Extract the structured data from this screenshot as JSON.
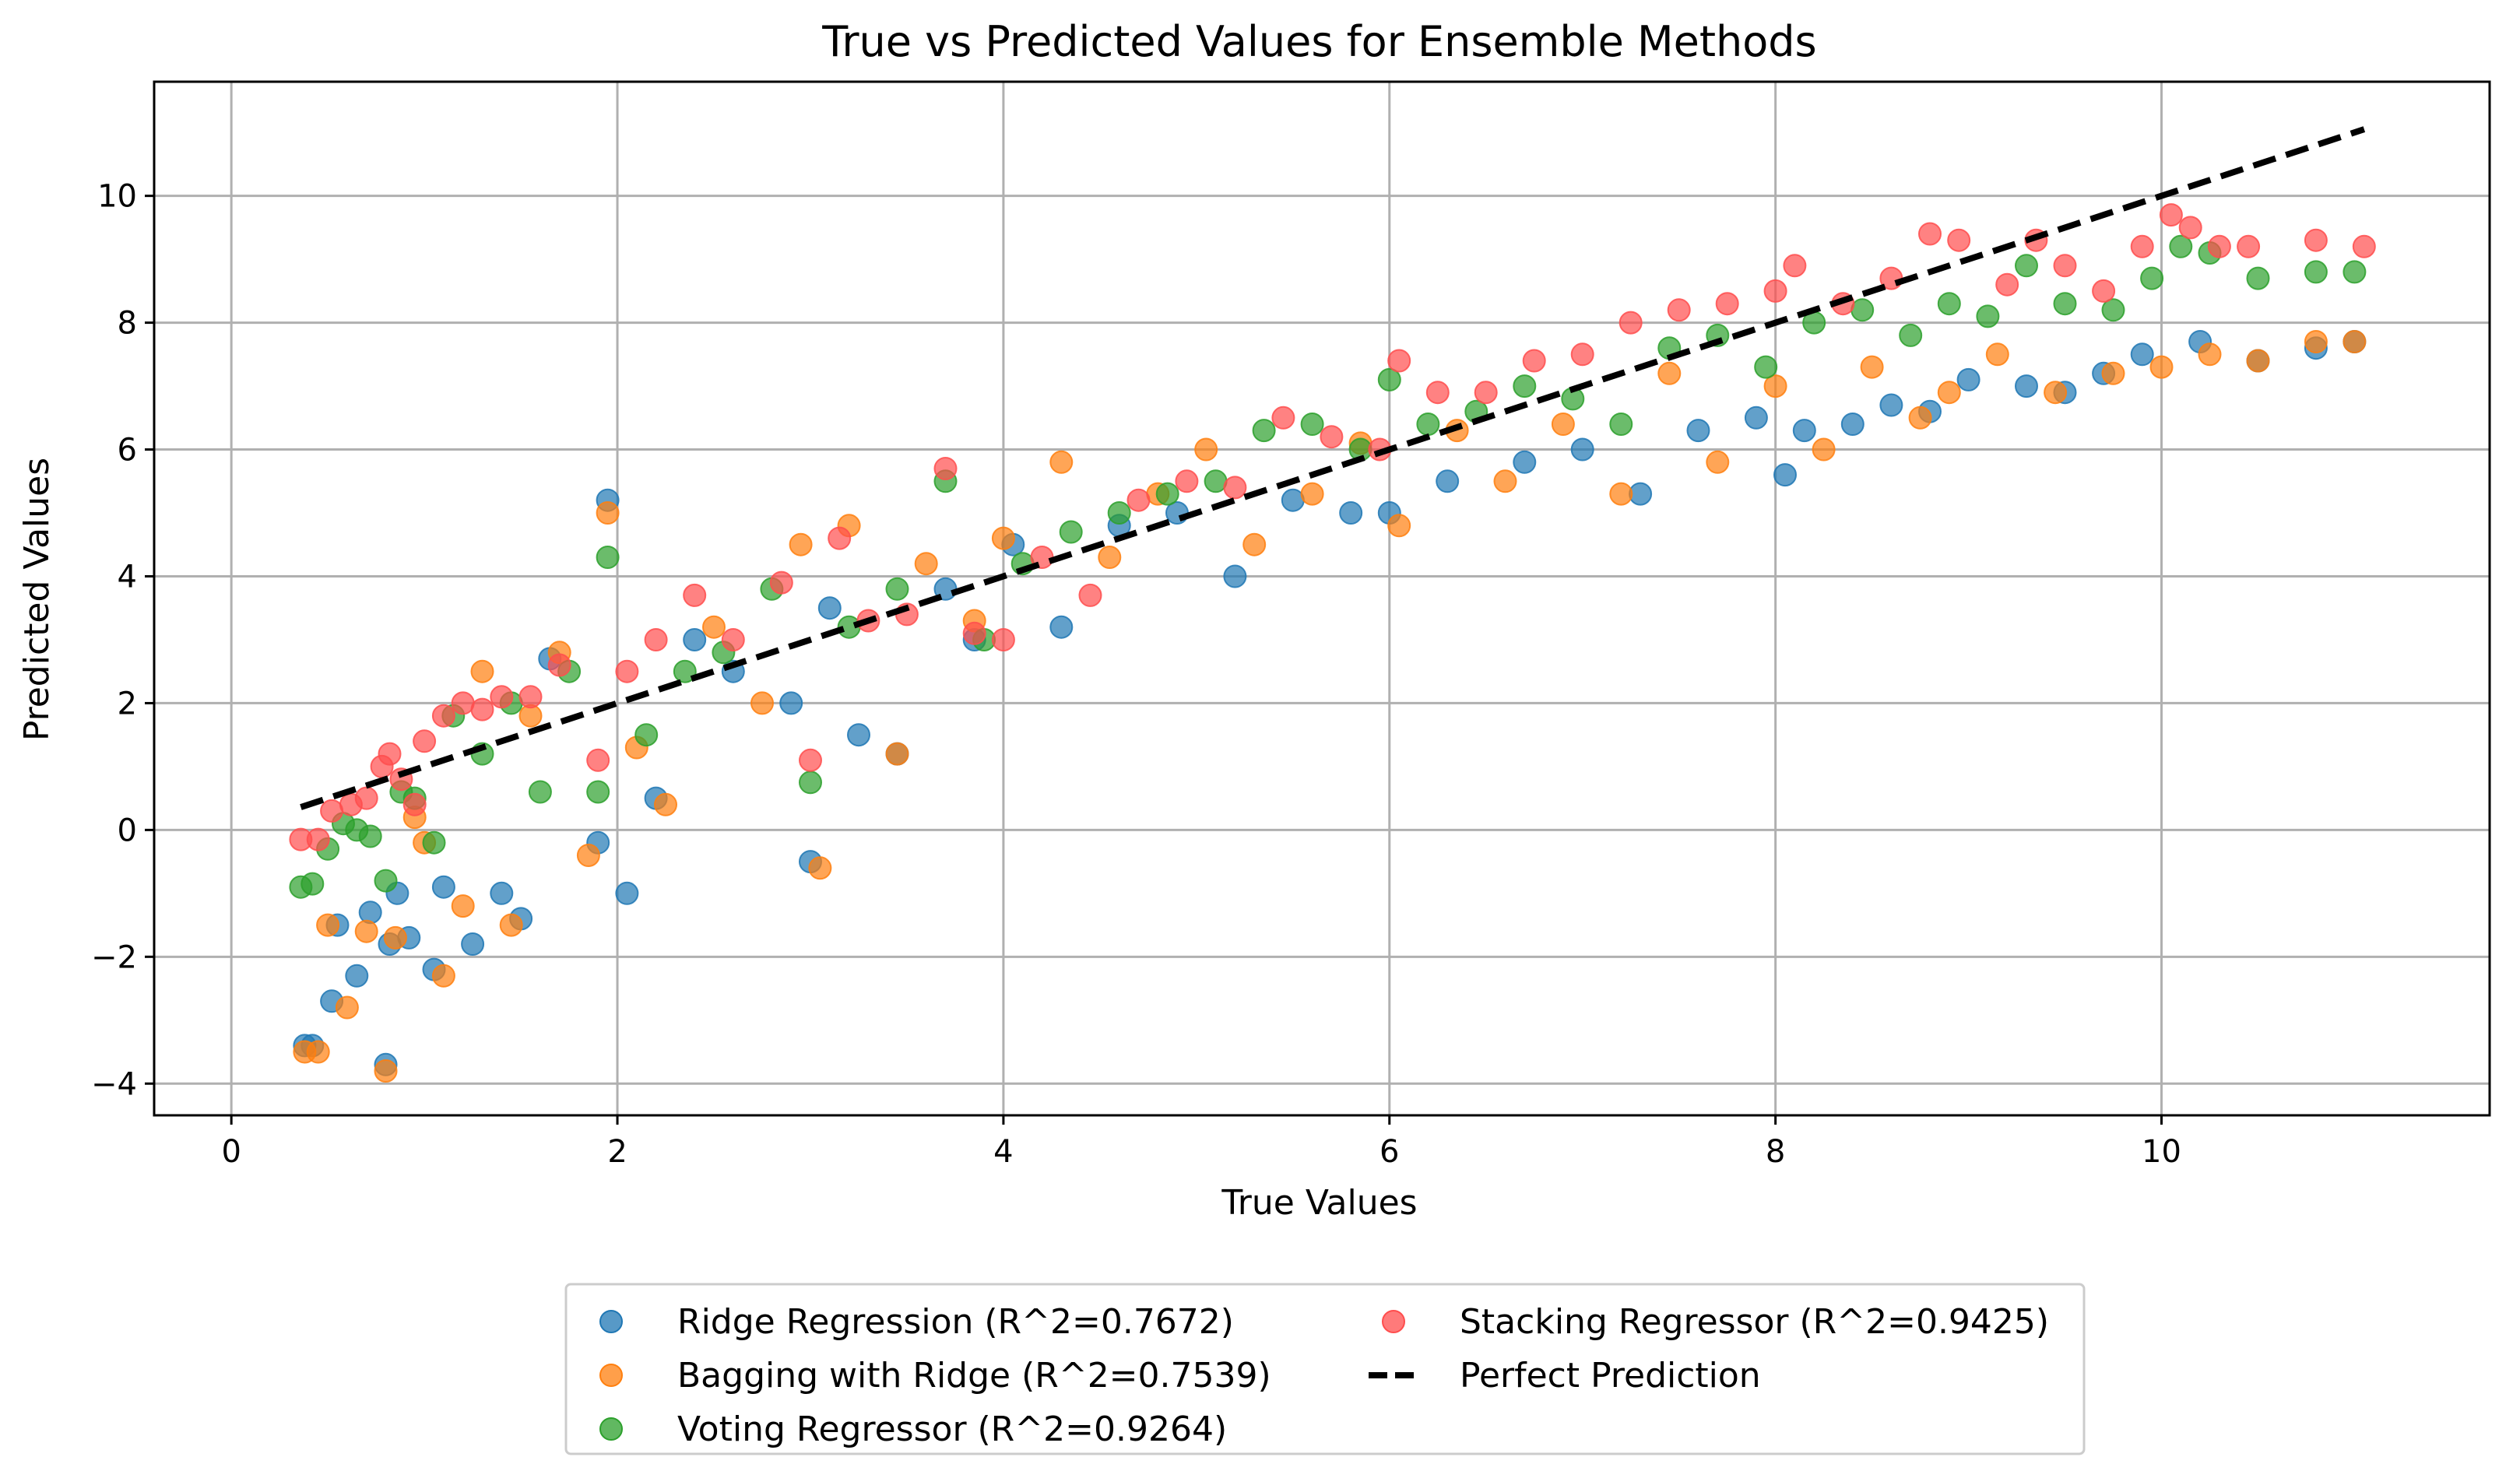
{
  "chart_data": {
    "type": "scatter",
    "title": "True vs Predicted Values for Ensemble Methods",
    "xlabel": "True Values",
    "ylabel": "Predicted Values",
    "xlim": [
      -0.4,
      11.7
    ],
    "ylim": [
      -4.5,
      11.8
    ],
    "x_ticks": [
      0,
      2,
      4,
      6,
      8,
      10
    ],
    "x_tick_labels": [
      "0",
      "2",
      "4",
      "6",
      "8",
      "10"
    ],
    "y_ticks": [
      -4,
      -2,
      0,
      2,
      4,
      6,
      8,
      10
    ],
    "y_tick_labels": [
      "−4",
      "−2",
      "0",
      "2",
      "4",
      "6",
      "8",
      "10"
    ],
    "grid": true,
    "legend_position": "lower-center-outside",
    "series": [
      {
        "name": "Ridge Regression (R^2=0.7672)",
        "color": "#1f77b4",
        "x": [
          0.38,
          0.42,
          0.52,
          0.55,
          0.65,
          0.72,
          0.8,
          0.82,
          0.86,
          0.92,
          1.05,
          1.1,
          1.25,
          1.4,
          1.5,
          1.65,
          1.9,
          1.95,
          2.05,
          2.2,
          2.4,
          2.6,
          2.9,
          3.0,
          3.1,
          3.25,
          3.45,
          3.7,
          3.85,
          4.05,
          4.3,
          4.6,
          4.9,
          5.2,
          5.5,
          5.8,
          6.0,
          6.3,
          6.7,
          7.0,
          7.3,
          7.6,
          7.9,
          8.05,
          8.15,
          8.4,
          8.6,
          8.8,
          9.0,
          9.3,
          9.5,
          9.7,
          9.9,
          10.2,
          10.5,
          10.8,
          11.0
        ],
        "y": [
          -3.4,
          -3.4,
          -2.7,
          -1.5,
          -2.3,
          -1.3,
          -3.7,
          -1.8,
          -1.0,
          -1.7,
          -2.2,
          -0.9,
          -1.8,
          -1.0,
          -1.4,
          2.7,
          -0.2,
          5.2,
          -1.0,
          0.5,
          3.0,
          2.5,
          2.0,
          -0.5,
          3.5,
          1.5,
          1.2,
          3.8,
          3.0,
          4.5,
          3.2,
          4.8,
          5.0,
          4.0,
          5.2,
          5.0,
          5.0,
          5.5,
          5.8,
          6.0,
          5.3,
          6.3,
          6.5,
          5.6,
          6.3,
          6.4,
          6.7,
          6.6,
          7.1,
          7.0,
          6.9,
          7.2,
          7.5,
          7.7,
          7.4,
          7.6,
          7.7
        ]
      },
      {
        "name": "Bagging with Ridge (R^2=0.7539)",
        "color": "#ff7f0e",
        "x": [
          0.38,
          0.45,
          0.5,
          0.6,
          0.7,
          0.8,
          0.85,
          0.95,
          1.0,
          1.1,
          1.2,
          1.3,
          1.45,
          1.55,
          1.7,
          1.85,
          1.95,
          2.1,
          2.25,
          2.5,
          2.75,
          2.95,
          3.05,
          3.2,
          3.45,
          3.6,
          3.85,
          4.0,
          4.3,
          4.55,
          4.8,
          5.05,
          5.3,
          5.6,
          5.85,
          6.05,
          6.35,
          6.6,
          6.9,
          7.2,
          7.45,
          7.7,
          8.0,
          8.25,
          8.5,
          8.75,
          8.9,
          9.15,
          9.45,
          9.75,
          10.0,
          10.25,
          10.5,
          10.8,
          11.0
        ],
        "y": [
          -3.5,
          -3.5,
          -1.5,
          -2.8,
          -1.6,
          -3.8,
          -1.7,
          0.2,
          -0.2,
          -2.3,
          -1.2,
          2.5,
          -1.5,
          1.8,
          2.8,
          -0.4,
          5.0,
          1.3,
          0.4,
          3.2,
          2.0,
          4.5,
          -0.6,
          4.8,
          1.2,
          4.2,
          3.3,
          4.6,
          5.8,
          4.3,
          5.3,
          6.0,
          4.5,
          5.3,
          6.1,
          4.8,
          6.3,
          5.5,
          6.4,
          5.3,
          7.2,
          5.8,
          7.0,
          6.0,
          7.3,
          6.5,
          6.9,
          7.5,
          6.9,
          7.2,
          7.3,
          7.5,
          7.4,
          7.7,
          7.7
        ]
      },
      {
        "name": "Voting Regressor (R^2=0.9264)",
        "color": "#2ca02c",
        "x": [
          0.36,
          0.42,
          0.5,
          0.58,
          0.65,
          0.72,
          0.8,
          0.88,
          0.95,
          1.05,
          1.15,
          1.3,
          1.45,
          1.6,
          1.75,
          1.9,
          1.95,
          2.15,
          2.35,
          2.55,
          2.8,
          3.0,
          3.2,
          3.45,
          3.7,
          3.9,
          4.1,
          4.35,
          4.6,
          4.85,
          5.1,
          5.35,
          5.6,
          5.85,
          6.0,
          6.2,
          6.45,
          6.7,
          6.95,
          7.2,
          7.45,
          7.7,
          7.95,
          8.2,
          8.45,
          8.7,
          8.9,
          9.1,
          9.3,
          9.5,
          9.75,
          9.95,
          10.1,
          10.25,
          10.5,
          10.8,
          11.0
        ],
        "y": [
          -0.9,
          -0.85,
          -0.3,
          0.1,
          0.0,
          -0.1,
          -0.8,
          0.6,
          0.5,
          -0.2,
          1.8,
          1.2,
          2.0,
          0.6,
          2.5,
          0.6,
          4.3,
          1.5,
          2.5,
          2.8,
          3.8,
          0.75,
          3.2,
          3.8,
          5.5,
          3.0,
          4.2,
          4.7,
          5.0,
          5.3,
          5.5,
          6.3,
          6.4,
          6.0,
          7.1,
          6.4,
          6.6,
          7.0,
          6.8,
          6.4,
          7.6,
          7.8,
          7.3,
          8.0,
          8.2,
          7.8,
          8.3,
          8.1,
          8.9,
          8.3,
          8.2,
          8.7,
          9.2,
          9.1,
          8.7,
          8.8,
          8.8
        ]
      },
      {
        "name": "Stacking Regressor (R^2=0.9425)",
        "color": "#ff4d4d",
        "x": [
          0.36,
          0.45,
          0.52,
          0.62,
          0.7,
          0.78,
          0.82,
          0.88,
          0.95,
          1.0,
          1.1,
          1.2,
          1.3,
          1.4,
          1.55,
          1.7,
          1.9,
          2.05,
          2.2,
          2.4,
          2.6,
          2.85,
          3.0,
          3.15,
          3.3,
          3.5,
          3.7,
          3.85,
          4.0,
          4.2,
          4.45,
          4.7,
          4.95,
          5.2,
          5.45,
          5.7,
          5.95,
          6.05,
          6.25,
          6.5,
          6.75,
          7.0,
          7.25,
          7.5,
          7.75,
          8.0,
          8.1,
          8.35,
          8.6,
          8.8,
          8.95,
          9.2,
          9.35,
          9.5,
          9.7,
          9.9,
          10.05,
          10.15,
          10.3,
          10.45,
          10.8,
          11.05
        ],
        "y": [
          -0.15,
          -0.15,
          0.3,
          0.4,
          0.5,
          1.0,
          1.2,
          0.8,
          0.4,
          1.4,
          1.8,
          2.0,
          1.9,
          2.1,
          2.1,
          2.6,
          1.1,
          2.5,
          3.0,
          3.7,
          3.0,
          3.9,
          1.1,
          4.6,
          3.3,
          3.4,
          5.7,
          3.1,
          3.0,
          4.3,
          3.7,
          5.2,
          5.5,
          5.4,
          6.5,
          6.2,
          6.0,
          7.4,
          6.9,
          6.9,
          7.4,
          7.5,
          8.0,
          8.2,
          8.3,
          8.5,
          8.9,
          8.3,
          8.7,
          9.4,
          9.3,
          8.6,
          9.3,
          8.9,
          8.5,
          9.2,
          9.7,
          9.5,
          9.2,
          9.2,
          9.3,
          9.2
        ]
      }
    ],
    "reference_line": {
      "name": "Perfect Prediction",
      "color": "#000000",
      "style": "dashed",
      "x": [
        0.36,
        11.05
      ],
      "y": [
        0.36,
        11.05
      ]
    }
  }
}
